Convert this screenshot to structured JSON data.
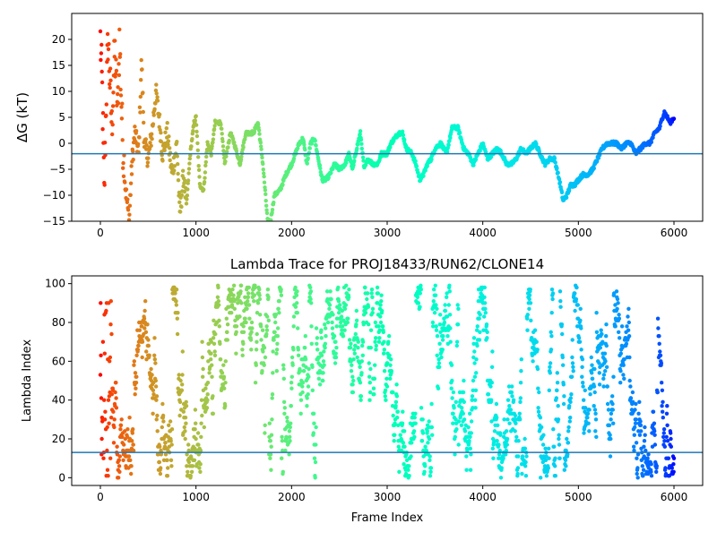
{
  "chart_data": [
    {
      "type": "scatter",
      "title": "",
      "xlabel": "",
      "ylabel": "ΔG (kT)",
      "xlim": [
        -300,
        6300
      ],
      "ylim": [
        -15,
        25
      ],
      "xticks": [
        "0",
        "1000",
        "2000",
        "3000",
        "4000",
        "5000",
        "6000"
      ],
      "yticks": [
        "−15",
        "−10",
        "−5",
        "0",
        "5",
        "10",
        "15",
        "20"
      ],
      "hline": -2,
      "colormap": "rainbow (red at frame 0 → violet at frame 6000)",
      "trace_keypoints": [
        [
          0,
          20
        ],
        [
          20,
          10
        ],
        [
          40,
          -10
        ],
        [
          60,
          8
        ],
        [
          80,
          20
        ],
        [
          100,
          12
        ],
        [
          120,
          3
        ],
        [
          150,
          18
        ],
        [
          180,
          6
        ],
        [
          200,
          20
        ],
        [
          230,
          2
        ],
        [
          260,
          -8
        ],
        [
          300,
          -15
        ],
        [
          330,
          -4
        ],
        [
          360,
          2
        ],
        [
          400,
          -2
        ],
        [
          430,
          16
        ],
        [
          460,
          0
        ],
        [
          500,
          -3
        ],
        [
          540,
          2
        ],
        [
          580,
          10
        ],
        [
          620,
          4
        ],
        [
          650,
          -2
        ],
        [
          700,
          2
        ],
        [
          750,
          -6
        ],
        [
          800,
          0
        ],
        [
          830,
          -14
        ],
        [
          870,
          -6
        ],
        [
          900,
          -12
        ],
        [
          940,
          -2
        ],
        [
          980,
          4
        ],
        [
          1000,
          5
        ],
        [
          1040,
          -8
        ],
        [
          1080,
          -9
        ],
        [
          1120,
          0
        ],
        [
          1160,
          -2
        ],
        [
          1200,
          4
        ],
        [
          1260,
          4
        ],
        [
          1300,
          -4
        ],
        [
          1360,
          2
        ],
        [
          1400,
          0
        ],
        [
          1460,
          -4
        ],
        [
          1520,
          2
        ],
        [
          1600,
          2
        ],
        [
          1650,
          4
        ],
        [
          1700,
          -4
        ],
        [
          1750,
          -15
        ],
        [
          1780,
          -15
        ],
        [
          1820,
          -10
        ],
        [
          1880,
          -9
        ],
        [
          1940,
          -6
        ],
        [
          2000,
          -4
        ],
        [
          2040,
          -2
        ],
        [
          2080,
          0
        ],
        [
          2120,
          1
        ],
        [
          2160,
          -4
        ],
        [
          2200,
          0
        ],
        [
          2240,
          1
        ],
        [
          2280,
          -3
        ],
        [
          2320,
          -7
        ],
        [
          2360,
          -7
        ],
        [
          2400,
          -6
        ],
        [
          2450,
          -4
        ],
        [
          2500,
          -5
        ],
        [
          2560,
          -4
        ],
        [
          2600,
          -2
        ],
        [
          2640,
          -5
        ],
        [
          2680,
          -1
        ],
        [
          2720,
          2
        ],
        [
          2760,
          -5
        ],
        [
          2800,
          -3
        ],
        [
          2850,
          -4
        ],
        [
          2900,
          -4
        ],
        [
          2940,
          -2
        ],
        [
          3000,
          -2
        ],
        [
          3040,
          0
        ],
        [
          3080,
          1
        ],
        [
          3120,
          2
        ],
        [
          3160,
          2
        ],
        [
          3200,
          -1
        ],
        [
          3260,
          -2
        ],
        [
          3300,
          -4
        ],
        [
          3340,
          -7
        ],
        [
          3380,
          -6
        ],
        [
          3420,
          -4
        ],
        [
          3460,
          -3
        ],
        [
          3500,
          -1
        ],
        [
          3560,
          0
        ],
        [
          3620,
          -2
        ],
        [
          3680,
          3
        ],
        [
          3740,
          3
        ],
        [
          3800,
          -1
        ],
        [
          3850,
          -2
        ],
        [
          3900,
          -4
        ],
        [
          3950,
          -2
        ],
        [
          4000,
          0
        ],
        [
          4050,
          -3
        ],
        [
          4100,
          -2
        ],
        [
          4150,
          -1
        ],
        [
          4200,
          -2
        ],
        [
          4250,
          -4
        ],
        [
          4300,
          -4
        ],
        [
          4350,
          -3
        ],
        [
          4400,
          -1
        ],
        [
          4450,
          -2
        ],
        [
          4500,
          -1
        ],
        [
          4550,
          0
        ],
        [
          4600,
          -2
        ],
        [
          4650,
          -4
        ],
        [
          4700,
          -3
        ],
        [
          4750,
          -3
        ],
        [
          4800,
          -7
        ],
        [
          4840,
          -11
        ],
        [
          4880,
          -10
        ],
        [
          4920,
          -8
        ],
        [
          4960,
          -8
        ],
        [
          5000,
          -7
        ],
        [
          5050,
          -6
        ],
        [
          5100,
          -6
        ],
        [
          5150,
          -5
        ],
        [
          5200,
          -3
        ],
        [
          5250,
          -1
        ],
        [
          5300,
          0
        ],
        [
          5350,
          0
        ],
        [
          5400,
          0
        ],
        [
          5450,
          -1
        ],
        [
          5500,
          0
        ],
        [
          5550,
          0
        ],
        [
          5600,
          -2
        ],
        [
          5650,
          -1
        ],
        [
          5700,
          0
        ],
        [
          5750,
          0
        ],
        [
          5800,
          2
        ],
        [
          5850,
          3
        ],
        [
          5880,
          5
        ],
        [
          5900,
          6
        ],
        [
          5930,
          5
        ],
        [
          5960,
          4
        ],
        [
          6000,
          5
        ]
      ]
    },
    {
      "type": "scatter",
      "title": "Lambda Trace for PROJ18433/RUN62/CLONE14",
      "xlabel": "Frame Index",
      "ylabel": "Lambda Index",
      "xlim": [
        -300,
        6300
      ],
      "ylim": [
        -4,
        104
      ],
      "xticks": [
        "0",
        "1000",
        "2000",
        "3000",
        "4000",
        "5000",
        "6000"
      ],
      "yticks": [
        "0",
        "20",
        "40",
        "60",
        "80",
        "100"
      ],
      "hline": 13,
      "colormap": "rainbow (red at frame 0 → violet at frame 6000)",
      "points_per_frame": "one lambda index (0–99) per frame, frames 0–6000"
    }
  ]
}
